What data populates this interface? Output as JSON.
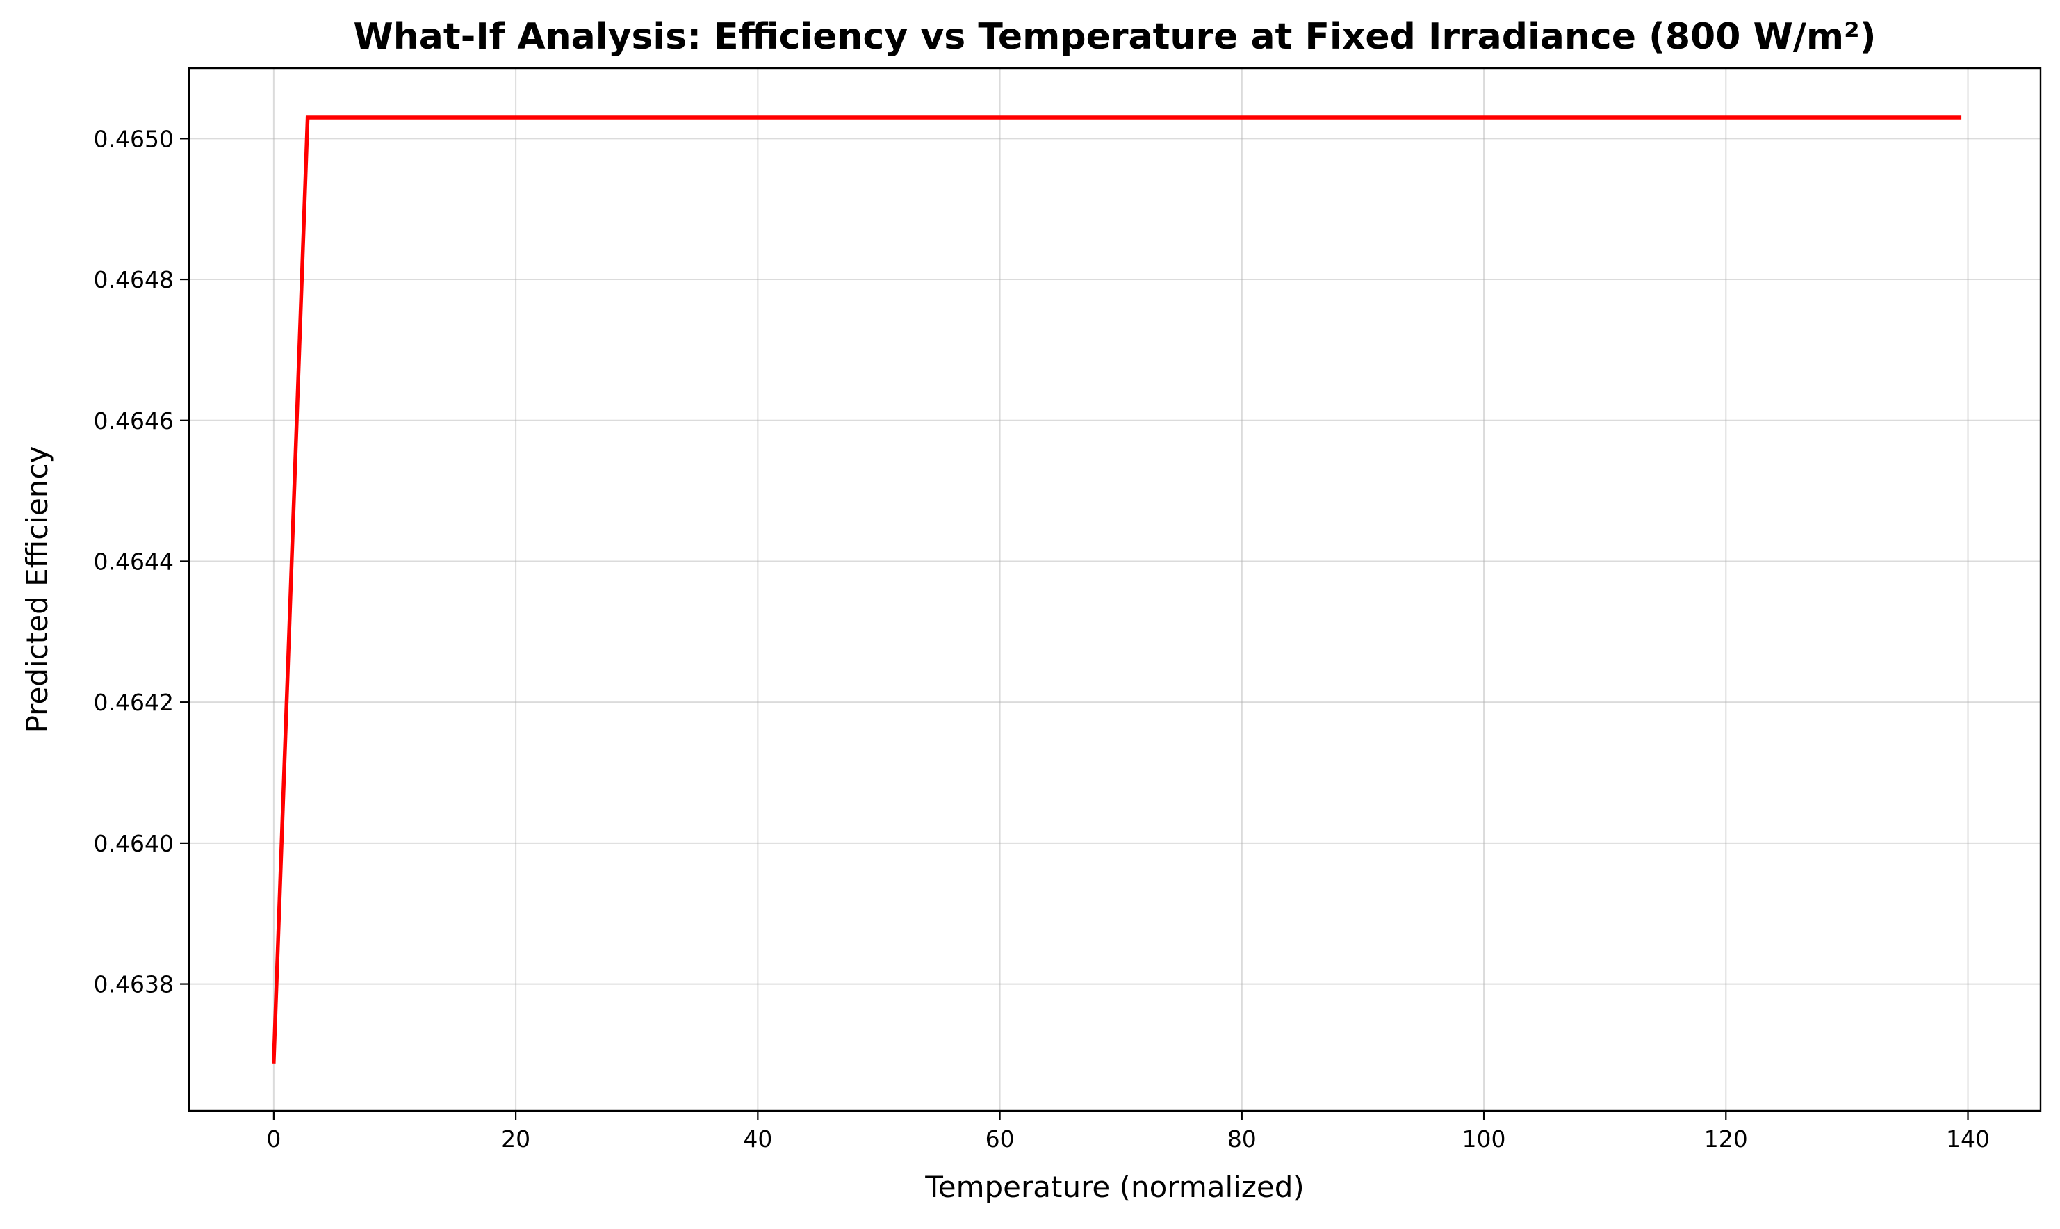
{
  "chart_data": {
    "type": "line",
    "title": "What-If Analysis: Efficiency vs Temperature at Fixed Irradiance (800 W/m²)",
    "xlabel": "Temperature (normalized)",
    "ylabel": "Predicted Efficiency",
    "xlim": [
      -7,
      146
    ],
    "ylim": [
      0.46362,
      0.4651
    ],
    "xticks": [
      0,
      20,
      40,
      60,
      80,
      100,
      120,
      140
    ],
    "xtick_labels": [
      "0",
      "20",
      "40",
      "60",
      "80",
      "100",
      "120",
      "140"
    ],
    "yticks": [
      0.4638,
      0.464,
      0.4642,
      0.4644,
      0.4646,
      0.4648,
      0.465
    ],
    "ytick_labels": [
      "0.4638",
      "0.4640",
      "0.4642",
      "0.4644",
      "0.4646",
      "0.4648",
      "0.4650"
    ],
    "grid": true,
    "series": [
      {
        "color": "#ff0000",
        "x": [
          0,
          2.8,
          10,
          20,
          40,
          60,
          80,
          100,
          120,
          139.3
        ],
        "y": [
          0.46369,
          0.46503,
          0.46503,
          0.46503,
          0.46503,
          0.46503,
          0.46503,
          0.46503,
          0.46503,
          0.46503
        ]
      }
    ]
  }
}
